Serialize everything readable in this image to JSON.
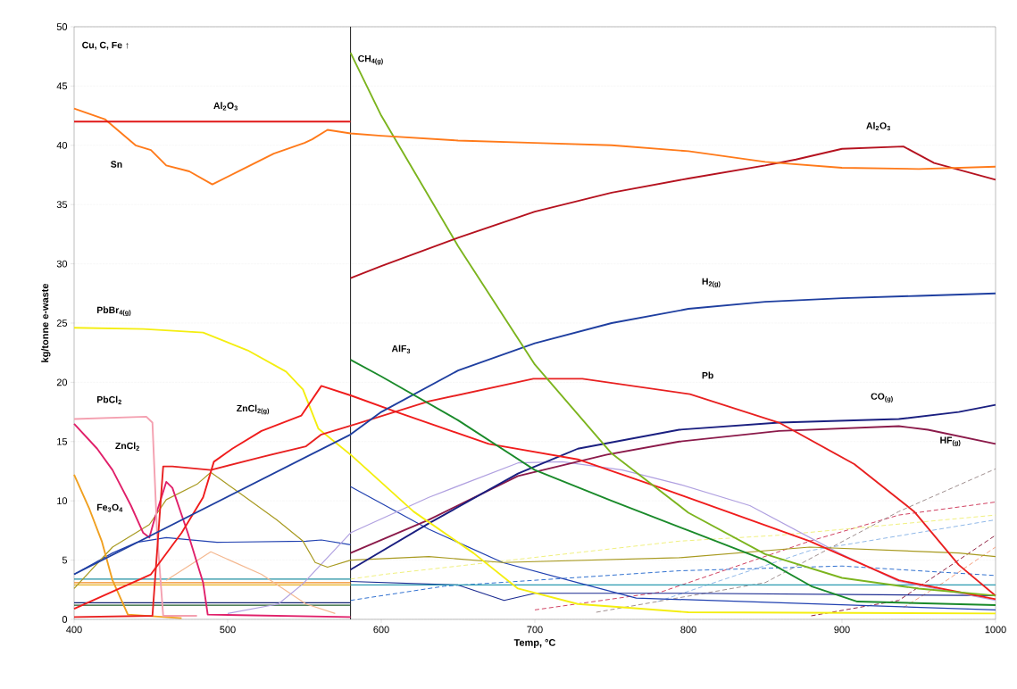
{
  "chart_data": {
    "type": "line",
    "xlabel": "Temp, °C",
    "ylabel": "kg/tonne e-waste",
    "xlim": [
      400,
      1000
    ],
    "ylim": [
      0,
      50
    ],
    "xticks": [
      400,
      500,
      600,
      700,
      800,
      900,
      1000
    ],
    "yticks": [
      0,
      5,
      10,
      15,
      20,
      25,
      30,
      35,
      40,
      45,
      50
    ],
    "grid": "y",
    "legend": false,
    "annotations": [
      "Cu, C, Fe ↑"
    ],
    "ref_lines": [
      {
        "axis": "x",
        "value": 580,
        "color": "#000000"
      }
    ],
    "series": [
      {
        "name": "Al$_{2}$O$_{3}$",
        "color": "#e01818",
        "x": [
          400,
          580
        ],
        "values": [
          42,
          42
        ]
      },
      {
        "name": "Sn",
        "color": "#ff7a1a",
        "x": [
          400,
          420,
          440,
          450,
          460,
          475,
          490,
          510,
          530,
          550,
          555,
          565,
          580,
          600,
          650,
          700,
          750,
          800,
          850,
          900,
          950,
          1000
        ],
        "values": [
          43.1,
          42.2,
          40,
          39.6,
          38.3,
          37.8,
          36.7,
          38,
          39.3,
          40.2,
          40.5,
          41.3,
          41.0,
          40.8,
          40.4,
          40.2,
          40.0,
          39.5,
          38.6,
          38.1,
          38.0,
          38.2
        ]
      },
      {
        "name": "Al$_{2}$O$_{3}$",
        "color": "#b5121f",
        "x": [
          580,
          600,
          650,
          700,
          750,
          800,
          850,
          870,
          900,
          940,
          960,
          1000
        ],
        "values": [
          28.8,
          29.8,
          32.2,
          34.4,
          36.0,
          37.2,
          38.3,
          38.8,
          39.7,
          39.9,
          38.5,
          37.1
        ]
      },
      {
        "name": "CH$_{4(g)}$",
        "color": "#7cb41e",
        "x": [
          580,
          600,
          650,
          700,
          750,
          800,
          850,
          900,
          950,
          1000
        ],
        "values": [
          47.8,
          42.5,
          31.5,
          21.5,
          14.0,
          9.0,
          5.5,
          3.5,
          2.6,
          2.0
        ]
      },
      {
        "name": "AlF$_{3}$",
        "color": "#1a8a2a",
        "x": [
          580,
          600,
          650,
          700,
          750,
          800,
          850,
          880,
          910,
          1000
        ],
        "values": [
          21.9,
          20.5,
          16.8,
          12.6,
          10.0,
          7.5,
          5.0,
          2.8,
          1.5,
          1.2
        ]
      },
      {
        "name": "H$_{2(g)}$",
        "color": "#1f3fa0",
        "x": [
          400,
          580,
          600,
          650,
          700,
          750,
          800,
          850,
          900,
          950,
          1000
        ],
        "values": [
          3.8,
          15.6,
          17.5,
          21,
          23.3,
          25.0,
          26.2,
          26.8,
          27.1,
          27.3,
          27.5
        ]
      },
      {
        "name": "Pb",
        "color": "#e82020",
        "x": [
          400,
          451,
          458,
          464,
          489,
          522,
          551,
          561,
          584,
          631,
          699,
          731,
          801,
          859,
          908,
          947,
          976,
          1000
        ],
        "values": [
          0.2,
          0.3,
          12.9,
          12.9,
          12.6,
          13.7,
          14.6,
          15.6,
          16.5,
          18.4,
          20.3,
          20.3,
          19.0,
          16.6,
          13.1,
          9.1,
          4.6,
          2.0
        ]
      },
      {
        "name": "ZnCl$_{2(g)}$",
        "color": "#f01c1c",
        "x": [
          400,
          450,
          470,
          484,
          491,
          503,
          522,
          548,
          561,
          580,
          612,
          670,
          728,
          782,
          879,
          937,
          1000
        ],
        "values": [
          0.9,
          3.8,
          7.3,
          10.3,
          13.3,
          14.4,
          15.9,
          17.2,
          19.7,
          18.9,
          17.4,
          14.8,
          13.5,
          11.1,
          6.6,
          3.3,
          1.7
        ]
      },
      {
        "name": "PbBr$_{4(g)}$",
        "color": "#f4ee10",
        "x": [
          400,
          445,
          484,
          513,
          538,
          549,
          559,
          580,
          621,
          660,
          689,
          728,
          800,
          1000
        ],
        "values": [
          24.6,
          24.5,
          24.2,
          22.7,
          20.9,
          19.4,
          16.1,
          13.9,
          9.1,
          5.6,
          2.6,
          1.3,
          0.6,
          0.5
        ]
      },
      {
        "name": "PbCl$_{2}$",
        "color": "#f4a0b0",
        "x": [
          400,
          447,
          451,
          454,
          458,
          480
        ],
        "values": [
          16.9,
          17.1,
          16.6,
          7.3,
          0.3,
          0.3
        ]
      },
      {
        "name": "ZnCl$_{2}$",
        "color": "#e0206a",
        "x": [
          400,
          415,
          425,
          437,
          445,
          449,
          452,
          460,
          464,
          474,
          484,
          487,
          580
        ],
        "values": [
          16.5,
          14.4,
          12.6,
          9.6,
          7.3,
          6.9,
          8.3,
          11.6,
          11.1,
          7.3,
          3.1,
          0.4,
          0.2
        ]
      },
      {
        "name": "Fe$_{3}$O$_{4}$",
        "color": "#f0a020",
        "x": [
          400,
          410,
          418,
          425,
          435,
          470
        ],
        "values": [
          12.2,
          9.3,
          6.6,
          3.3,
          0.4,
          0.1
        ]
      },
      {
        "name": "CO$_{(g)}$",
        "color": "#1a1f80",
        "x": [
          580,
          631,
          689,
          728,
          794,
          859,
          937,
          976,
          1000
        ],
        "values": [
          4.2,
          8.1,
          12.3,
          14.4,
          16.0,
          16.6,
          16.9,
          17.5,
          18.1
        ]
      },
      {
        "name": "HF$_{(g)}$",
        "color": "#8b1a4a",
        "x": [
          580,
          631,
          689,
          747,
          794,
          859,
          937,
          956,
          1000
        ],
        "values": [
          5.6,
          8.4,
          12.1,
          13.9,
          15.0,
          15.9,
          16.3,
          16.0,
          14.8
        ]
      },
      {
        "color": "#a89a20",
        "x": [
          400,
          425,
          449,
          460,
          480,
          489,
          503,
          532,
          549,
          557,
          565,
          580,
          631,
          679,
          794,
          879,
          976,
          1000
        ],
        "values": [
          2.6,
          6.1,
          8.0,
          10.1,
          11.4,
          12.4,
          11.1,
          8.4,
          6.6,
          4.8,
          4.4,
          5.0,
          5.3,
          4.8,
          5.2,
          6.1,
          5.6,
          5.3
        ]
      },
      {
        "color": "#b0a0e0",
        "x": [
          500,
          533,
          549,
          580,
          631,
          689,
          718,
          757,
          794,
          840,
          898,
          937,
          1000
        ],
        "values": [
          0.5,
          1.3,
          3.0,
          7.3,
          10.3,
          13.2,
          13.3,
          12.6,
          11.4,
          9.6,
          5.6,
          3.2,
          1.6
        ]
      },
      {
        "color": "#2040b0",
        "x": [
          400,
          425,
          441,
          460,
          493,
          551,
          561,
          580
        ],
        "values": [
          3.8,
          5.6,
          6.5,
          6.9,
          6.5,
          6.6,
          6.7,
          6.3
        ]
      },
      {
        "color": "#2040b0",
        "x": [
          580,
          631,
          679,
          728,
          766,
          1000
        ],
        "values": [
          11.2,
          7.6,
          4.8,
          3.1,
          1.8,
          0.8
        ]
      },
      {
        "color": "#f4b890",
        "x": [
          460,
          489,
          522,
          551,
          570
        ],
        "values": [
          3.3,
          5.7,
          3.8,
          1.3,
          0.5
        ]
      },
      {
        "color": "#2090a0",
        "x": [
          400,
          580
        ],
        "values": [
          3.4,
          3.4
        ]
      },
      {
        "color": "#f08a20",
        "x": [
          400,
          580
        ],
        "values": [
          3.1,
          3.1
        ]
      },
      {
        "color": "#e8b020",
        "x": [
          400,
          580
        ],
        "values": [
          2.9,
          2.9
        ]
      },
      {
        "color": "#102070",
        "x": [
          400,
          580
        ],
        "values": [
          1.4,
          1.4
        ]
      },
      {
        "color": "#1e5a28",
        "x": [
          400,
          580
        ],
        "values": [
          1.2,
          1.2
        ]
      },
      {
        "color": "#2a9ab0",
        "x": [
          580,
          1000
        ],
        "values": [
          2.9,
          2.9
        ]
      },
      {
        "color": "#1a2a90",
        "x": [
          580,
          650,
          680,
          700,
          800,
          1000
        ],
        "values": [
          3.2,
          2.9,
          1.6,
          2.2,
          2.2,
          2.0
        ]
      },
      {
        "color": "#3070d0",
        "line_style": "dashed",
        "x": [
          580,
          641,
          700,
          794,
          900,
          1000
        ],
        "values": [
          1.6,
          2.8,
          3.3,
          4.1,
          4.5,
          3.7
        ]
      },
      {
        "color": "#f0f080",
        "line_style": "dashed",
        "x": [
          580,
          602,
          794,
          859,
          1000
        ],
        "values": [
          3.4,
          3.8,
          6.6,
          7.1,
          8.8
        ]
      },
      {
        "color": "#a09090",
        "line_style": "dashed",
        "x": [
          740,
          850,
          937,
          1000
        ],
        "values": [
          0.6,
          3.1,
          9.1,
          12.7
        ]
      },
      {
        "color": "#d04060",
        "line_style": "dashed",
        "x": [
          700,
          782,
          879,
          937,
          1000
        ],
        "values": [
          0.8,
          2.3,
          6.6,
          8.8,
          9.9
        ]
      },
      {
        "color": "#90b8e8",
        "line_style": "dashed",
        "x": [
          780,
          879,
          1000
        ],
        "values": [
          1.5,
          5.8,
          8.4
        ]
      },
      {
        "color": "#902040",
        "line_style": "dashed",
        "x": [
          880,
          937,
          1000
        ],
        "values": [
          0.3,
          1.6,
          7.1
        ]
      },
      {
        "color": "#f4a080",
        "line_style": "dashed",
        "x": [
          940,
          966,
          1000
        ],
        "values": [
          1.0,
          3.1,
          6.1
        ]
      }
    ]
  }
}
